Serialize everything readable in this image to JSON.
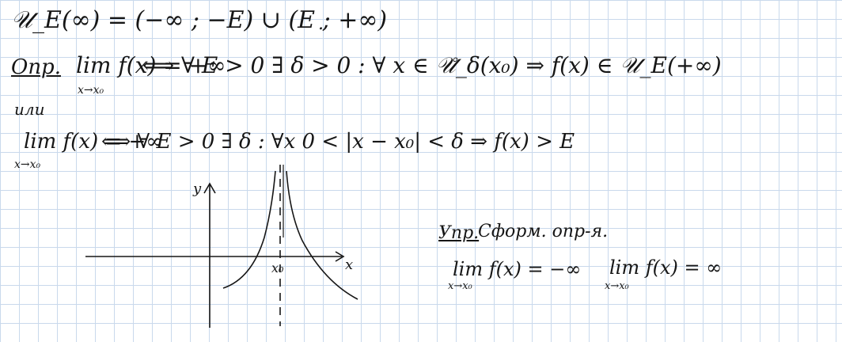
{
  "line1": {
    "text": "𝒰_E(∞) = (−∞ ; −E) ∪ (E ; +∞)"
  },
  "trailing_dot": ".",
  "definition": {
    "label": "Опр.",
    "lim": "lim f(x) = +∞",
    "lim_sub": "x→x₀",
    "body": "⟺ ∀ E > 0 ∃ δ > 0 : ∀ x ∈ 𝒰̊_δ(x₀)  ⇒  f(x) ∈ 𝒰_E(+∞)"
  },
  "or_word": "или",
  "definition2": {
    "lim": "lim f(x) = +∞",
    "lim_sub": "x→x₀",
    "body": "⟺ ∀ E > 0 ∃ δ : ∀x 0 < |x − x₀| < δ  ⇒  f(x) > E"
  },
  "graph": {
    "y_label": "y",
    "x_label": "x",
    "x0_label": "x₀"
  },
  "exercise": {
    "label": "Упр.",
    "text": "Сформ. опр-я.",
    "item1": "lim f(x) = −∞",
    "item1_sub": "x→x₀",
    "item2": "lim f(x) = ∞",
    "item2_sub": "x→x₀"
  }
}
